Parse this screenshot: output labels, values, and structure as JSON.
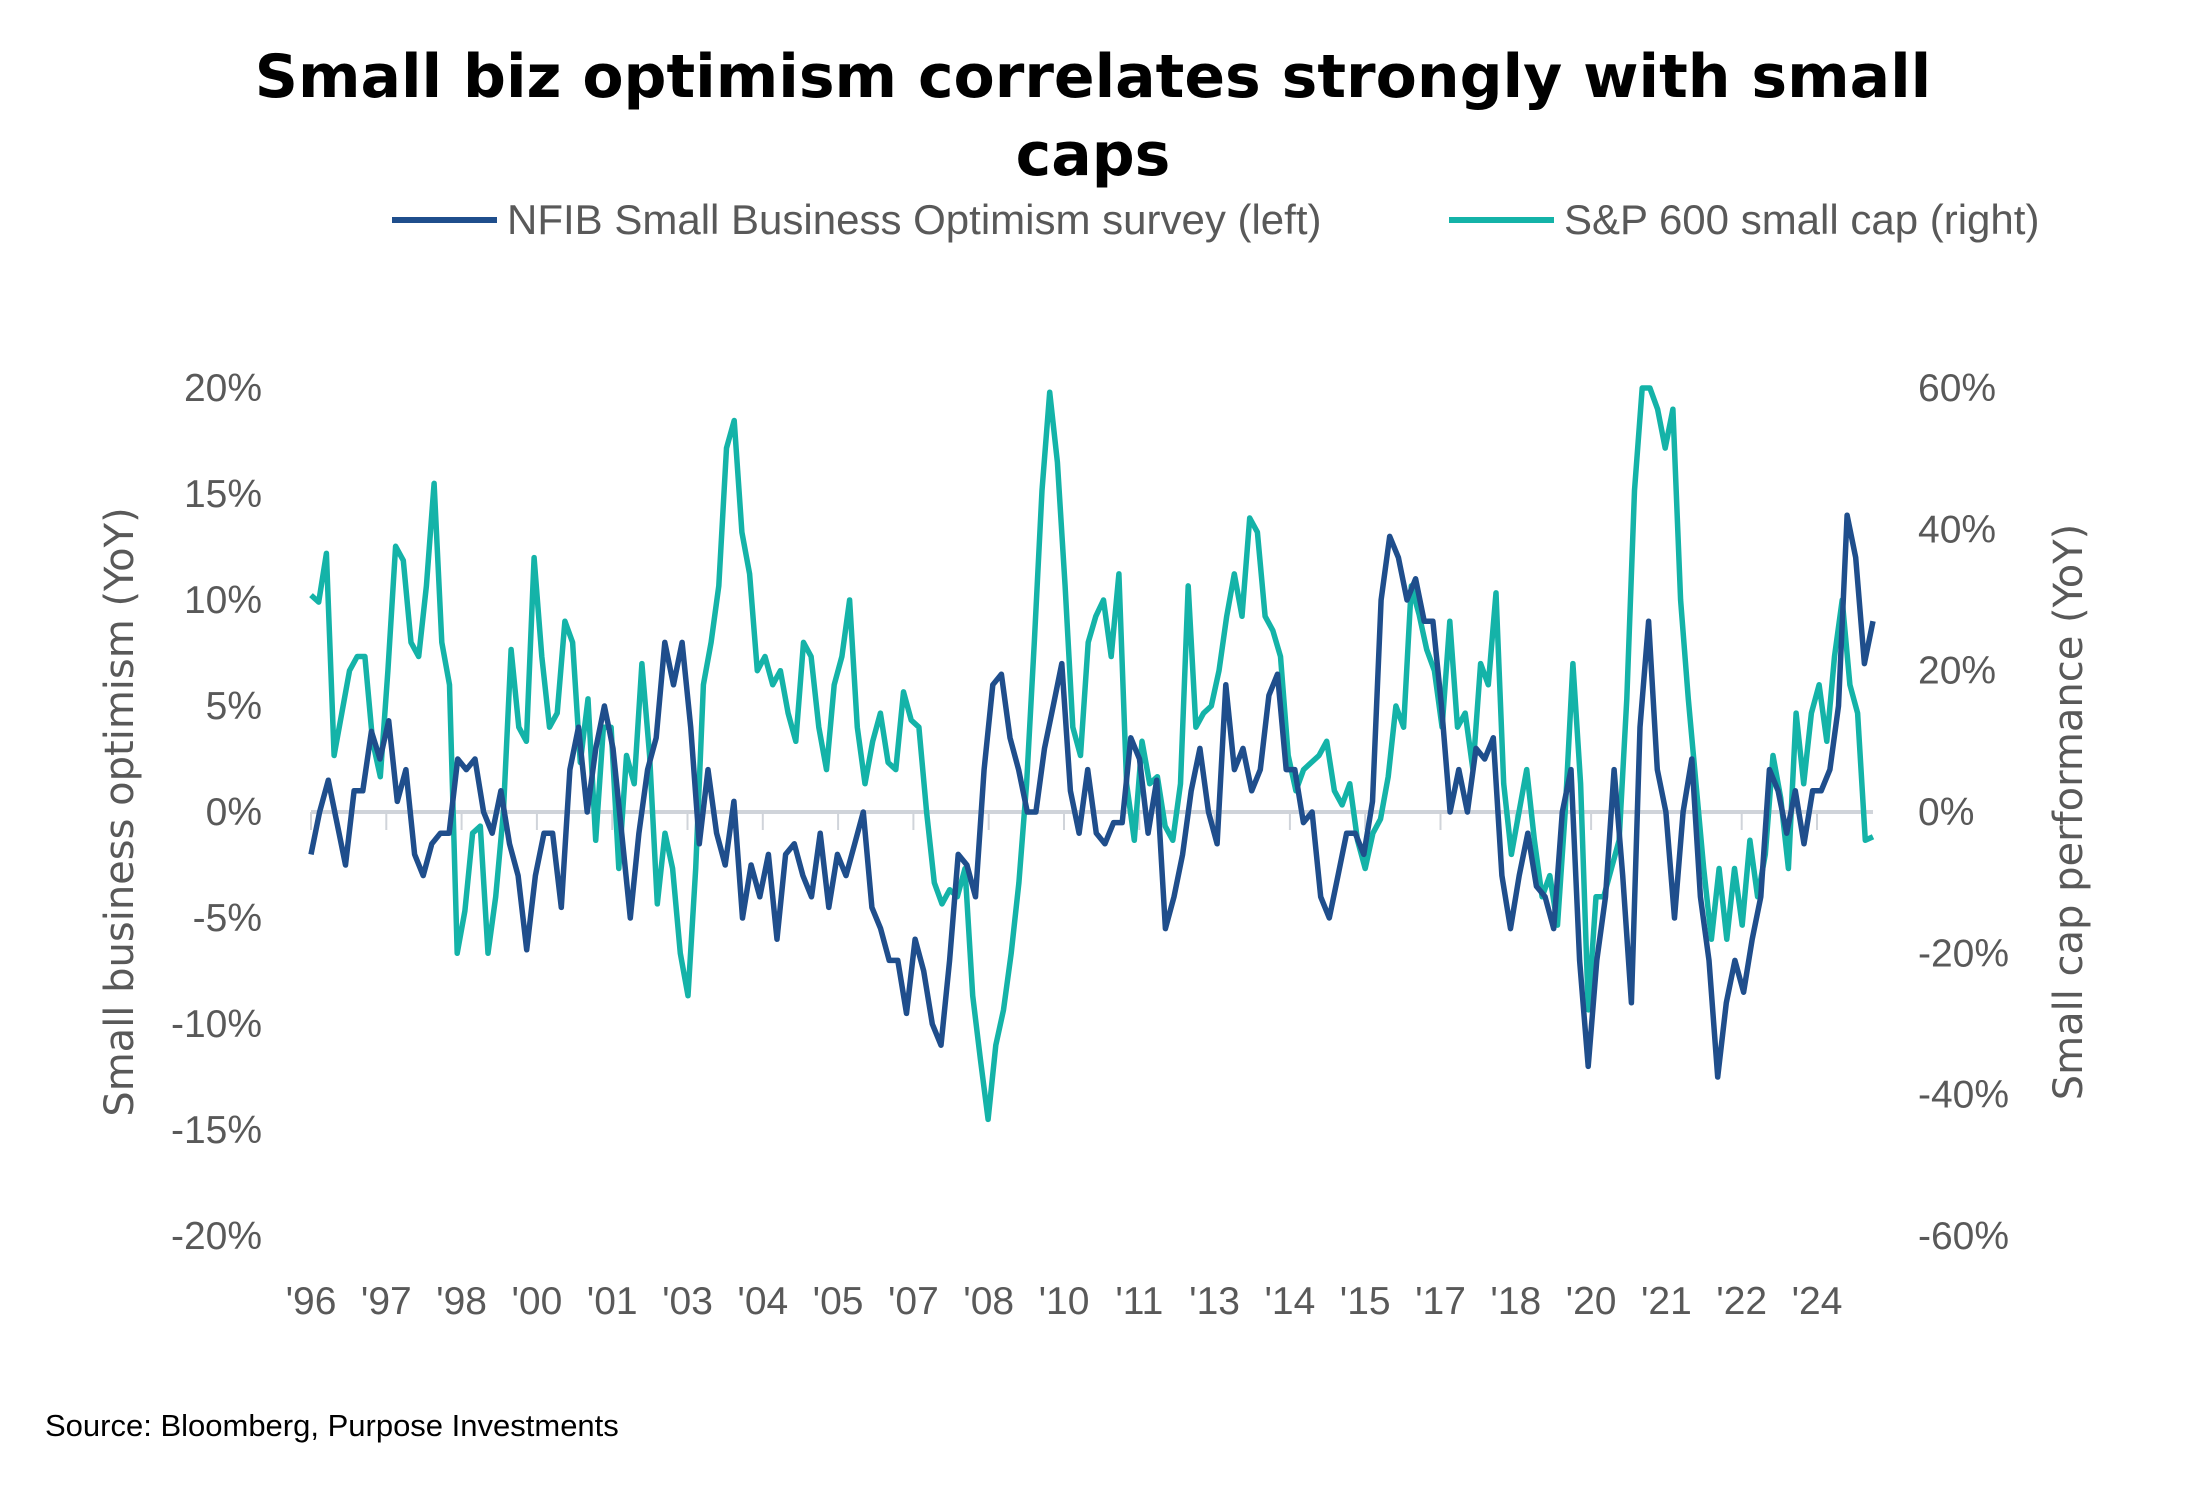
{
  "chart_data": {
    "type": "line",
    "title": "Small biz optimism correlates strongly with small caps",
    "title_lines": [
      "Small biz optimism correlates strongly with small",
      "caps"
    ],
    "x_range": [
      "1996",
      "2025"
    ],
    "x_tick_labels": [
      "'96",
      "'97",
      "'98",
      "'00",
      "'01",
      "'03",
      "'04",
      "'05",
      "'07",
      "'08",
      "'10",
      "'11",
      "'13",
      "'14",
      "'15",
      "'17",
      "'18",
      "'20",
      "'21",
      "'22",
      "'24"
    ],
    "y_left": {
      "label": "Small business optimism (YoY)",
      "lim": [
        -20,
        20
      ],
      "ticks": [
        "20%",
        "15%",
        "10%",
        "5%",
        "0%",
        "-5%",
        "-10%",
        "-15%",
        "-20%"
      ],
      "tick_values": [
        20,
        15,
        10,
        5,
        0,
        -5,
        -10,
        -15,
        -20
      ]
    },
    "y_right": {
      "label": "Small cap performance (YoY)",
      "lim": [
        -60,
        60
      ],
      "ticks": [
        "60%",
        "40%",
        "20%",
        "0%",
        "-20%",
        "-40%",
        "-60%"
      ],
      "tick_values": [
        60,
        40,
        20,
        0,
        -20,
        -40,
        -60
      ]
    },
    "legend_position": "top",
    "grid": false,
    "series": [
      {
        "name": "NFIB Small Business Optimism survey (left)",
        "axis": "left",
        "color": "#1f4e8c",
        "values": [
          -2,
          0,
          1.5,
          -0.5,
          -2.5,
          1,
          1,
          3.8,
          2.5,
          4.3,
          0.5,
          2,
          -2,
          -3,
          -1.5,
          -1,
          -1,
          2.5,
          2,
          2.5,
          0,
          -1,
          1,
          -1.5,
          -3,
          -6.5,
          -3,
          -1,
          -1,
          -4.5,
          2,
          4,
          0,
          3,
          5,
          3,
          -1,
          -5,
          -1,
          2,
          3.5,
          8,
          6,
          8,
          4,
          -1.5,
          2,
          -1,
          -2.5,
          0.5,
          -5,
          -2.5,
          -4,
          -2,
          -6,
          -2,
          -1.5,
          -3,
          -4,
          -1,
          -4.5,
          -2,
          -3,
          -1.5,
          0,
          -4.5,
          -5.5,
          -7,
          -7,
          -9.5,
          -6,
          -7.5,
          -10,
          -11,
          -7,
          -2,
          -2.5,
          -4,
          2,
          6,
          6.5,
          3.5,
          2,
          0,
          0,
          3,
          5,
          7,
          1,
          -1,
          2,
          -1,
          -1.5,
          -0.5,
          -0.5,
          3.5,
          2.5,
          -1,
          1.5,
          -5.5,
          -4,
          -2,
          1,
          3,
          0,
          -1.5,
          6,
          2,
          3,
          1,
          2,
          5.5,
          6.5,
          2,
          2,
          -0.5,
          0,
          -4,
          -5,
          -3,
          -1,
          -1,
          -2,
          0.5,
          10,
          13,
          12,
          10,
          11,
          9,
          9,
          5,
          0,
          2,
          0,
          3,
          2.5,
          3.5,
          -3,
          -5.5,
          -3,
          -1,
          -3.5,
          -4,
          -5.5,
          0,
          2,
          -7,
          -12,
          -7,
          -4,
          2,
          -3,
          -9,
          4,
          9,
          2,
          0,
          -5,
          0,
          2.5,
          -4,
          -7,
          -12.5,
          -9,
          -7,
          -8.5,
          -6,
          -4,
          2,
          1,
          -1,
          1,
          -1.5,
          1,
          1,
          2,
          5,
          14,
          12,
          7,
          9
        ]
      },
      {
        "name": "S&P 600 small cap (right)",
        "axis": "right",
        "color": "#14b3a8",
        "values": [
          30.7,
          29.7,
          36.6,
          8,
          14,
          20,
          22,
          22,
          10,
          5,
          20,
          37.6,
          35.6,
          24,
          22,
          32,
          46.5,
          24,
          18,
          -20,
          -14,
          -3,
          -2,
          -20,
          -12,
          0,
          23,
          12,
          10,
          36,
          22,
          12,
          14,
          27,
          24,
          7,
          16,
          -4,
          12,
          12,
          -8,
          8,
          4,
          21,
          8,
          -13,
          -3,
          -8,
          -20,
          -26,
          -8,
          18,
          24,
          32,
          51.5,
          55.4,
          39.6,
          33.7,
          20,
          22,
          18,
          20,
          14,
          10,
          24,
          22,
          12,
          6,
          18,
          22,
          30,
          12,
          4,
          10,
          14,
          7,
          6,
          17,
          13,
          12,
          0,
          -10,
          -13,
          -11,
          -12,
          -8,
          -26,
          -35,
          -43.5,
          -33,
          -28,
          -20,
          -10,
          4,
          24,
          45.5,
          59.4,
          49.5,
          32,
          12,
          8,
          24,
          27.7,
          30,
          22,
          33.7,
          4,
          -4,
          10,
          4,
          5,
          -2,
          -4,
          4,
          32,
          12,
          14,
          15,
          20,
          27.7,
          33.7,
          27.7,
          41.6,
          39.6,
          27.7,
          25.7,
          22,
          8,
          3,
          6,
          7,
          8,
          10,
          3,
          1,
          4,
          -4,
          -8,
          -3,
          -1,
          5,
          15,
          12,
          32,
          28,
          23,
          20,
          12,
          27,
          12,
          14,
          6,
          21,
          18,
          31,
          4,
          -6,
          0,
          6,
          -4,
          -12,
          -9,
          -16,
          0,
          21,
          4,
          -28,
          -12,
          -12,
          -8,
          -4,
          16,
          45.5,
          60,
          60,
          57,
          51.5,
          57,
          30,
          16,
          4,
          -8,
          -18,
          -8,
          -18,
          -8,
          -16,
          -4,
          -12,
          -6,
          8,
          2,
          -8,
          14,
          4,
          14,
          18,
          10,
          22,
          30,
          18,
          14,
          -4,
          -3.5
        ]
      }
    ]
  },
  "source": "Source: Bloomberg, Purpose Investments"
}
